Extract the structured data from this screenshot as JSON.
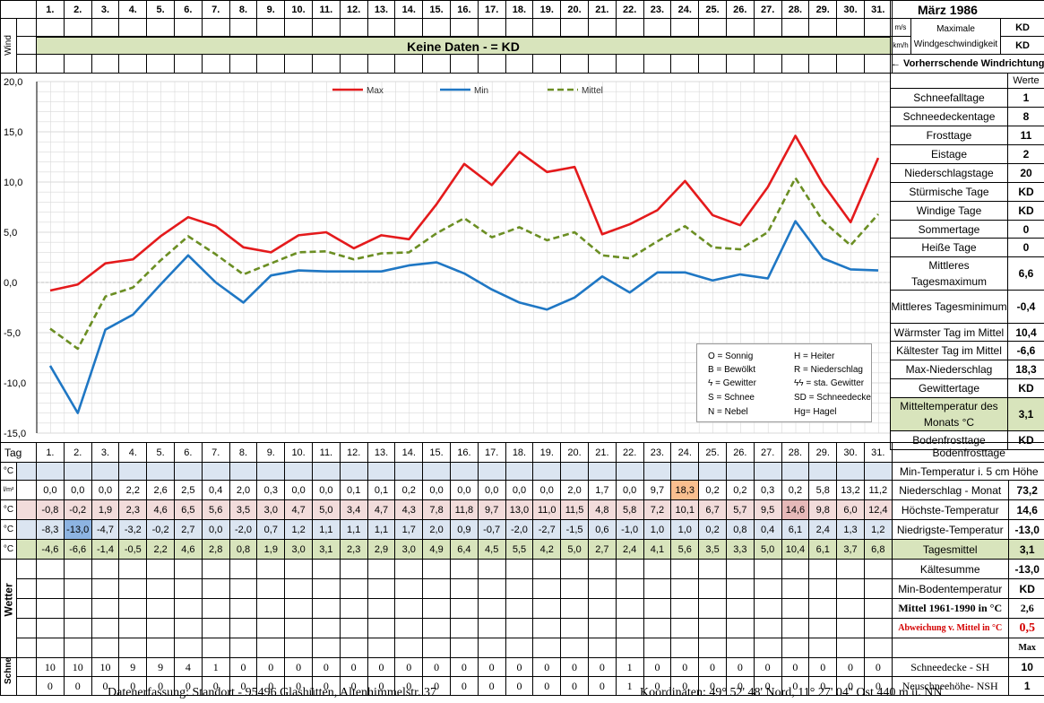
{
  "month_title": "März 1986",
  "days": [
    "1.",
    "2.",
    "3.",
    "4.",
    "5.",
    "6.",
    "7.",
    "8.",
    "9.",
    "10.",
    "11.",
    "12.",
    "13.",
    "14.",
    "15.",
    "16.",
    "17.",
    "18.",
    "19.",
    "20.",
    "21.",
    "22.",
    "23.",
    "24.",
    "25.",
    "26.",
    "27.",
    "28.",
    "29.",
    "30.",
    "31."
  ],
  "wind": {
    "row_label": "Wind",
    "no_data": "Keine Daten -  = KD",
    "unit_ms": "m/s",
    "unit_kmh": "km/h",
    "max_label_1": "Maximale",
    "max_label_2": "Windgeschwindigkeit",
    "max_ms": "KD",
    "max_kmh": "KD",
    "direction_label": "← Vorherrschende Windrichtung"
  },
  "stats_header": "Werte",
  "stats": [
    {
      "label": "Schneefalltage",
      "value": "1"
    },
    {
      "label": "Schneedeckentage",
      "value": "8"
    },
    {
      "label": "Frosttage",
      "value": "11"
    },
    {
      "label": "Eistage",
      "value": "2"
    },
    {
      "label": "Niederschlagstage",
      "value": "20"
    },
    {
      "label": "Stürmische Tage",
      "value": "KD"
    },
    {
      "label": "Windige Tage",
      "value": "KD"
    },
    {
      "label": "Sommertage",
      "value": "0"
    },
    {
      "label": "Heiße Tage",
      "value": "0"
    },
    {
      "label": "Mittleres Tagesmaximum",
      "value": "6,6"
    },
    {
      "label": "Mittleres Tagesminimum",
      "value": "-0,4"
    },
    {
      "label": "Wärmster Tag im Mittel",
      "value": "10,4"
    },
    {
      "label": "Kältester Tag im Mittel",
      "value": "-6,6"
    },
    {
      "label": "Max-Niederschlag",
      "value": "18,3"
    },
    {
      "label": "Gewittertage",
      "value": "KD"
    },
    {
      "label": "Mitteltemperatur des Monats °C",
      "value": "3,1"
    },
    {
      "label": "Bodenfrosttage",
      "value": "KD"
    }
  ],
  "chart_data": {
    "type": "line",
    "x": [
      "1.",
      "2.",
      "3.",
      "4.",
      "5.",
      "6.",
      "7.",
      "8.",
      "9.",
      "10.",
      "11.",
      "12.",
      "13.",
      "14.",
      "15.",
      "16.",
      "17.",
      "18.",
      "19.",
      "20.",
      "21.",
      "22.",
      "23.",
      "24.",
      "25.",
      "26.",
      "27.",
      "28.",
      "29.",
      "30.",
      "31."
    ],
    "ylim": [
      -15,
      20
    ],
    "yticks": [
      "20,0",
      "15,0",
      "10,0",
      "5,0",
      "0,0",
      "-5,0",
      "-10,0",
      "-15,0"
    ],
    "series": [
      {
        "name": "Max",
        "color": "#e41a1c",
        "values": [
          -0.8,
          -0.2,
          1.9,
          2.3,
          4.6,
          6.5,
          5.6,
          3.5,
          3.0,
          4.7,
          5.0,
          3.4,
          4.7,
          4.3,
          7.8,
          11.8,
          9.7,
          13.0,
          11.0,
          11.5,
          4.8,
          5.8,
          7.2,
          10.1,
          6.7,
          5.7,
          9.5,
          14.6,
          9.8,
          6.0,
          12.4
        ]
      },
      {
        "name": "Min",
        "color": "#1f77c4",
        "values": [
          -8.3,
          -13.0,
          -4.7,
          -3.2,
          -0.2,
          2.7,
          0.0,
          -2.0,
          0.7,
          1.2,
          1.1,
          1.1,
          1.1,
          1.7,
          2.0,
          0.9,
          -0.7,
          -2.0,
          -2.7,
          -1.5,
          0.6,
          -1.0,
          1.0,
          1.0,
          0.2,
          0.8,
          0.4,
          6.1,
          2.4,
          1.3,
          1.2
        ]
      },
      {
        "name": "Mittel",
        "color": "#6b8e23",
        "dashed": true,
        "values": [
          -4.6,
          -6.6,
          -1.4,
          -0.5,
          2.2,
          4.6,
          2.8,
          0.8,
          1.9,
          3.0,
          3.1,
          2.3,
          2.9,
          3.0,
          4.9,
          6.4,
          4.5,
          5.5,
          4.2,
          5.0,
          2.7,
          2.4,
          4.1,
          5.6,
          3.5,
          3.3,
          5.0,
          10.4,
          6.1,
          3.7,
          6.8
        ]
      }
    ],
    "legend_position": "top",
    "grid": true
  },
  "weather_legend": [
    "O = Sonnig",
    "H = Heiter",
    "B = Bewölkt",
    "R = Niederschlag",
    "ϟ = Gewitter",
    "ϟϟ = sta. Gewitter",
    "S = Schnee",
    "SD = Schneedecke",
    "N = Nebel",
    "Hg= Hagel"
  ],
  "table": {
    "tag_label": "Tag",
    "unit_c": "°C",
    "unit_lm": "l/m²",
    "min5_label": "Min-Temperatur i. 5 cm Höhe",
    "rows": [
      {
        "label": "Niederschlag - Monat",
        "total": "73,2",
        "values": [
          "0,0",
          "0,0",
          "0,0",
          "2,2",
          "2,6",
          "2,5",
          "0,4",
          "2,0",
          "0,3",
          "0,0",
          "0,0",
          "0,1",
          "0,1",
          "0,2",
          "0,0",
          "0,0",
          "0,0",
          "0,0",
          "0,0",
          "2,0",
          "1,7",
          "0,0",
          "9,7",
          "18,3",
          "0,2",
          "0,2",
          "0,3",
          "0,2",
          "5,8",
          "13,2",
          "11,2"
        ]
      },
      {
        "label": "Höchste-Temperatur",
        "total": "14,6",
        "values": [
          "-0,8",
          "-0,2",
          "1,9",
          "2,3",
          "4,6",
          "6,5",
          "5,6",
          "3,5",
          "3,0",
          "4,7",
          "5,0",
          "3,4",
          "4,7",
          "4,3",
          "7,8",
          "11,8",
          "9,7",
          "13,0",
          "11,0",
          "11,5",
          "4,8",
          "5,8",
          "7,2",
          "10,1",
          "6,7",
          "5,7",
          "9,5",
          "14,6",
          "9,8",
          "6,0",
          "12,4"
        ]
      },
      {
        "label": "Niedrigste-Temperatur",
        "total": "-13,0",
        "values": [
          "-8,3",
          "-13,0",
          "-4,7",
          "-3,2",
          "-0,2",
          "2,7",
          "0,0",
          "-2,0",
          "0,7",
          "1,2",
          "1,1",
          "1,1",
          "1,1",
          "1,7",
          "2,0",
          "0,9",
          "-0,7",
          "-2,0",
          "-2,7",
          "-1,5",
          "0,6",
          "-1,0",
          "1,0",
          "1,0",
          "0,2",
          "0,8",
          "0,4",
          "6,1",
          "2,4",
          "1,3",
          "1,2"
        ]
      },
      {
        "label": "Tagesmittel",
        "total": "3,1",
        "values": [
          "-4,6",
          "-6,6",
          "-1,4",
          "-0,5",
          "2,2",
          "4,6",
          "2,8",
          "0,8",
          "1,9",
          "3,0",
          "3,1",
          "2,3",
          "2,9",
          "3,0",
          "4,9",
          "6,4",
          "4,5",
          "5,5",
          "4,2",
          "5,0",
          "2,7",
          "2,4",
          "4,1",
          "5,6",
          "3,5",
          "3,3",
          "5,0",
          "10,4",
          "6,1",
          "3,7",
          "6,8"
        ]
      }
    ],
    "kaeltesumme_label": "Kältesumme",
    "kaeltesumme_value": "-13,0",
    "min_boden_label": "Min-Bodentemperatur",
    "min_boden_value": "KD",
    "mittel_label": "Mittel 1961-1990 in °C",
    "mittel_value": "2,6",
    "abweichung_label": "Abweichung v. Mittel in °C",
    "abweichung_value": "0,5",
    "wetter_label": "Wetter",
    "max_label": "Max",
    "schnee_label": "Schnee",
    "schneedecke_label": "Schneedecke -  SH",
    "schneedecke_value": "10",
    "neuschnee_label": "Neuschneehöhe- NSH",
    "neuschnee_value": "1",
    "schneedecke": [
      "10",
      "10",
      "10",
      "9",
      "9",
      "4",
      "1",
      "0",
      "0",
      "0",
      "0",
      "0",
      "0",
      "0",
      "0",
      "0",
      "0",
      "0",
      "0",
      "0",
      "0",
      "1",
      "0",
      "0",
      "0",
      "0",
      "0",
      "0",
      "0",
      "0",
      "0"
    ],
    "neuschnee": [
      "0",
      "0",
      "0",
      "0",
      "0",
      "0",
      "0",
      "0",
      "0",
      "0",
      "0",
      "0",
      "0",
      "0",
      "0",
      "0",
      "0",
      "0",
      "0",
      "0",
      "0",
      "1",
      "0",
      "0",
      "0",
      "0",
      "0",
      "0",
      "0",
      "0",
      "0"
    ]
  },
  "footer": {
    "left": "Datenerfassung:  Standort -  95496  Glashütten, Altenhimmelstr. 37",
    "right": "Koordinaten:  49° 52' 48' Nord,  11° 27' 04'' Ost   440 m ü. NN"
  }
}
